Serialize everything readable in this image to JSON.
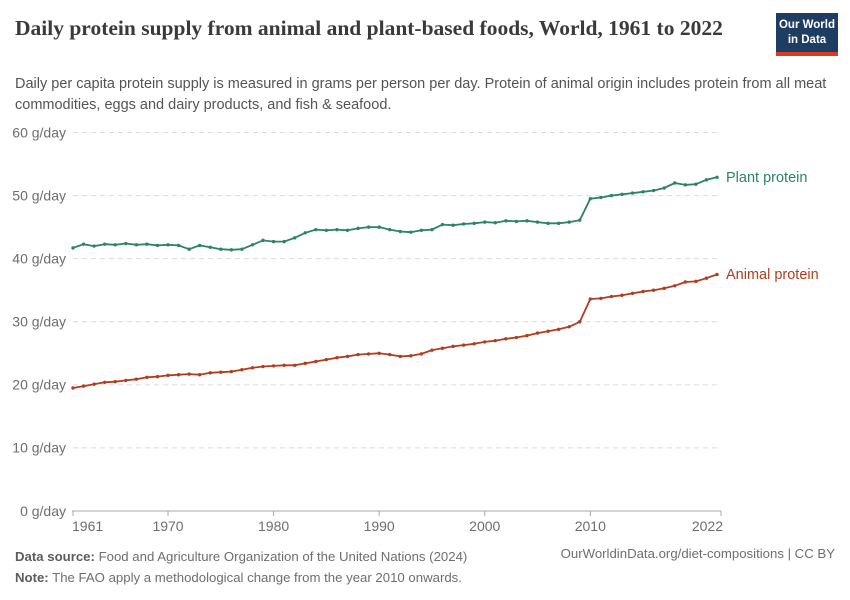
{
  "header": {
    "title": "Daily protein supply from animal and plant-based foods, World, 1961 to 2022",
    "subtitle": "Daily per capita protein supply is measured in grams per person per day. Protein of animal origin includes protein from all meat commodities, eggs and dairy products, and fish & seafood.",
    "logo_line1": "Our World",
    "logo_line2": "in Data",
    "logo_bg_color": "#1d3d63",
    "logo_stripe_color": "#dc3a22"
  },
  "chart_data": {
    "type": "line",
    "x_range": [
      1961,
      2022
    ],
    "x_step": 1,
    "xticks": [
      1961,
      1970,
      1980,
      1990,
      2000,
      2010,
      2022
    ],
    "ylim": [
      0,
      60
    ],
    "yticks": [
      0,
      10,
      20,
      30,
      40,
      50,
      60
    ],
    "y_tick_suffix": " g/day",
    "grid": "horizontal-dashed",
    "legend_position": "right-of-line-ends",
    "series": [
      {
        "name": "Plant protein",
        "color": "#2c8465",
        "values": [
          41.7,
          42.3,
          42.0,
          42.3,
          42.2,
          42.4,
          42.2,
          42.3,
          42.1,
          42.2,
          42.1,
          41.5,
          42.1,
          41.8,
          41.5,
          41.4,
          41.5,
          42.2,
          42.9,
          42.7,
          42.7,
          43.3,
          44.1,
          44.6,
          44.5,
          44.6,
          44.5,
          44.8,
          45.0,
          45.0,
          44.6,
          44.3,
          44.2,
          44.5,
          44.6,
          45.4,
          45.3,
          45.5,
          45.6,
          45.8,
          45.7,
          46.0,
          45.9,
          46.0,
          45.8,
          45.6,
          45.6,
          45.8,
          46.1,
          49.5,
          49.7,
          50.0,
          50.2,
          50.4,
          50.6,
          50.8,
          51.2,
          52.0,
          51.7,
          51.8,
          52.5,
          52.9
        ]
      },
      {
        "name": "Animal protein",
        "color": "#b13d1e",
        "values": [
          19.5,
          19.8,
          20.1,
          20.4,
          20.5,
          20.7,
          20.9,
          21.2,
          21.3,
          21.5,
          21.6,
          21.7,
          21.6,
          21.9,
          22.0,
          22.1,
          22.4,
          22.7,
          22.9,
          23.0,
          23.1,
          23.1,
          23.4,
          23.7,
          24.0,
          24.3,
          24.5,
          24.8,
          24.9,
          25.0,
          24.8,
          24.5,
          24.6,
          24.9,
          25.5,
          25.8,
          26.1,
          26.3,
          26.5,
          26.8,
          27.0,
          27.3,
          27.5,
          27.8,
          28.2,
          28.5,
          28.8,
          29.2,
          30.0,
          33.6,
          33.7,
          34.0,
          34.2,
          34.5,
          34.8,
          35.0,
          35.3,
          35.7,
          36.3,
          36.4,
          36.9,
          37.5
        ]
      }
    ]
  },
  "footer": {
    "data_source_label": "Data source:",
    "data_source_text": "Food and Agriculture Organization of the United Nations (2024)",
    "note_label": "Note:",
    "note_text": "The FAO apply a methodological change from the year 2010 onwards.",
    "link_text": "OurWorldinData.org/diet-compositions | CC BY"
  }
}
